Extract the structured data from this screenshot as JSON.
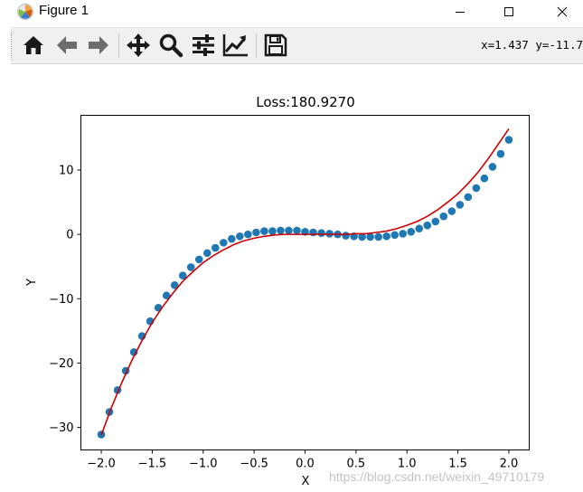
{
  "window": {
    "title": "Figure 1",
    "controls": [
      "minimize",
      "maximize",
      "close"
    ]
  },
  "toolbar": {
    "buttons": [
      {
        "name": "home",
        "icon": "home-icon"
      },
      {
        "name": "back",
        "icon": "arrow-left-icon"
      },
      {
        "name": "forward",
        "icon": "arrow-right-icon"
      },
      {
        "name": "pan",
        "icon": "move-icon"
      },
      {
        "name": "zoom",
        "icon": "magnifier-icon"
      },
      {
        "name": "configure-subplots",
        "icon": "sliders-icon"
      },
      {
        "name": "edit-axis",
        "icon": "line-chart-icon"
      },
      {
        "name": "save",
        "icon": "floppy-disk-icon"
      }
    ],
    "coords": "x=1.437 y=-11.7"
  },
  "watermark": "https://blog.csdn.net/weixin_49710179",
  "chart_data": {
    "type": "scatter",
    "title": "Loss:180.9270",
    "xlabel": "X",
    "ylabel": "Y",
    "xlim": [
      -2.2,
      2.2
    ],
    "ylim": [
      -33.5,
      18.5
    ],
    "xticks": [
      -2.0,
      -1.5,
      -1.0,
      -0.5,
      0.0,
      0.5,
      1.0,
      1.5,
      2.0
    ],
    "xtick_labels": [
      "−2.0",
      "−1.5",
      "−1.0",
      "−0.5",
      "0.0",
      "0.5",
      "1.0",
      "1.5",
      "2.0"
    ],
    "yticks": [
      -30,
      -20,
      -10,
      0,
      10
    ],
    "ytick_labels": [
      "−30",
      "−20",
      "−10",
      "0",
      "10"
    ],
    "grid": false,
    "colors": {
      "points": "#1f77b4",
      "fit_line": "#cc0000"
    },
    "series": [
      {
        "type": "scatter",
        "x": [
          -2.0,
          -1.92,
          -1.84,
          -1.76,
          -1.68,
          -1.6,
          -1.52,
          -1.44,
          -1.36,
          -1.28,
          -1.2,
          -1.12,
          -1.04,
          -0.96,
          -0.88,
          -0.8,
          -0.72,
          -0.64,
          -0.56,
          -0.48,
          -0.4,
          -0.32,
          -0.24,
          -0.16,
          -0.08,
          0.0,
          0.08,
          0.16,
          0.24,
          0.32,
          0.4,
          0.48,
          0.56,
          0.64,
          0.72,
          0.8,
          0.88,
          0.96,
          1.04,
          1.12,
          1.2,
          1.28,
          1.36,
          1.44,
          1.52,
          1.6,
          1.68,
          1.76,
          1.84,
          1.92,
          2.0
        ],
        "y": [
          -31.1,
          -27.6,
          -24.2,
          -21.2,
          -18.3,
          -15.8,
          -13.5,
          -11.4,
          -9.5,
          -7.9,
          -6.4,
          -5.1,
          -3.9,
          -2.9,
          -2.1,
          -1.3,
          -0.7,
          -0.3,
          0.0,
          0.3,
          0.5,
          0.5,
          0.6,
          0.6,
          0.6,
          0.4,
          0.3,
          0.2,
          0.1,
          0.0,
          -0.2,
          -0.3,
          -0.4,
          -0.4,
          -0.4,
          -0.3,
          -0.1,
          0.1,
          0.4,
          0.9,
          1.4,
          2.0,
          2.8,
          3.6,
          4.6,
          5.8,
          7.2,
          8.7,
          10.5,
          12.5,
          14.7
        ]
      },
      {
        "type": "line",
        "x": [
          -2.0,
          -1.9,
          -1.8,
          -1.7,
          -1.6,
          -1.5,
          -1.4,
          -1.3,
          -1.2,
          -1.1,
          -1.0,
          -0.9,
          -0.8,
          -0.7,
          -0.6,
          -0.5,
          -0.4,
          -0.3,
          -0.2,
          -0.1,
          0.0,
          0.1,
          0.2,
          0.3,
          0.4,
          0.5,
          0.6,
          0.7,
          0.8,
          0.9,
          1.0,
          1.1,
          1.2,
          1.3,
          1.4,
          1.5,
          1.6,
          1.7,
          1.8,
          1.9,
          2.0
        ],
        "y": [
          -31.2,
          -26.9,
          -23.1,
          -19.6,
          -16.5,
          -13.7,
          -11.3,
          -9.2,
          -7.3,
          -5.8,
          -4.4,
          -3.3,
          -2.4,
          -1.6,
          -1.0,
          -0.6,
          -0.3,
          -0.1,
          0.0,
          0.0,
          0.0,
          0.0,
          0.0,
          0.0,
          0.0,
          0.1,
          0.1,
          0.3,
          0.5,
          0.9,
          1.4,
          2.0,
          2.8,
          3.8,
          5.0,
          6.3,
          7.9,
          9.7,
          11.8,
          14.1,
          16.4
        ]
      }
    ]
  }
}
